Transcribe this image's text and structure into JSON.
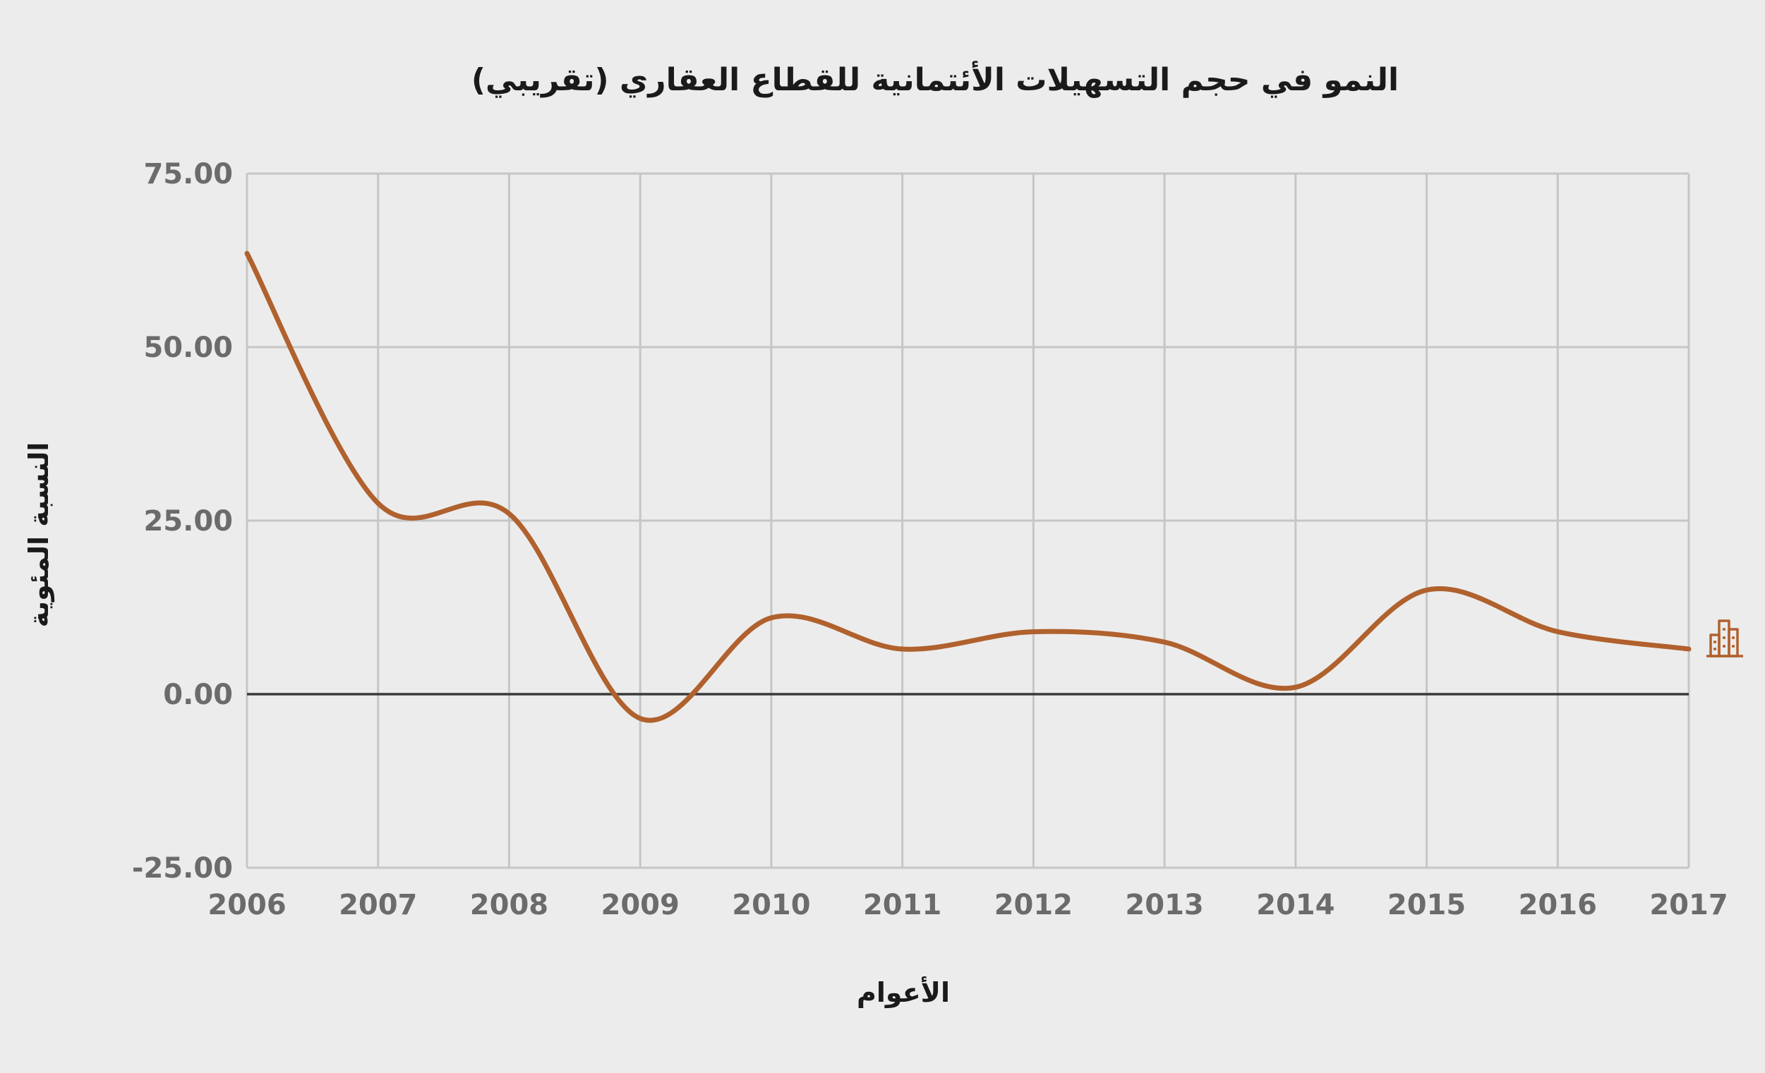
{
  "chart_data": {
    "type": "line",
    "title": "النمو في حجم التسهيلات الأئتمانية للقطاع العقاري (تقريبي)",
    "xlabel": "الأعوام",
    "ylabel": "النسبة المئوية",
    "categories": [
      "2006",
      "2007",
      "2008",
      "2009",
      "2010",
      "2011",
      "2012",
      "2013",
      "2014",
      "2015",
      "2016",
      "2017"
    ],
    "y_ticks": [
      "75.00",
      "50.00",
      "25.00",
      "0.00",
      "-25.00"
    ],
    "ylim": [
      -25,
      75
    ],
    "grid": true,
    "smooth": true,
    "series": [
      {
        "values": [
          63.5,
          27.5,
          26,
          -3.5,
          11,
          6.5,
          9,
          7.5,
          1,
          15,
          9,
          6.5
        ]
      }
    ],
    "colors": {
      "series": "#b0612d",
      "grid": "#c6c6c6",
      "zero_line": "#3a3a3a",
      "tick_text": "#6b6b6b",
      "title_text": "#1a1a1a",
      "background": "#ececec"
    }
  },
  "logo": {
    "icon": "building-chart-icon",
    "color": "#b0612d"
  }
}
